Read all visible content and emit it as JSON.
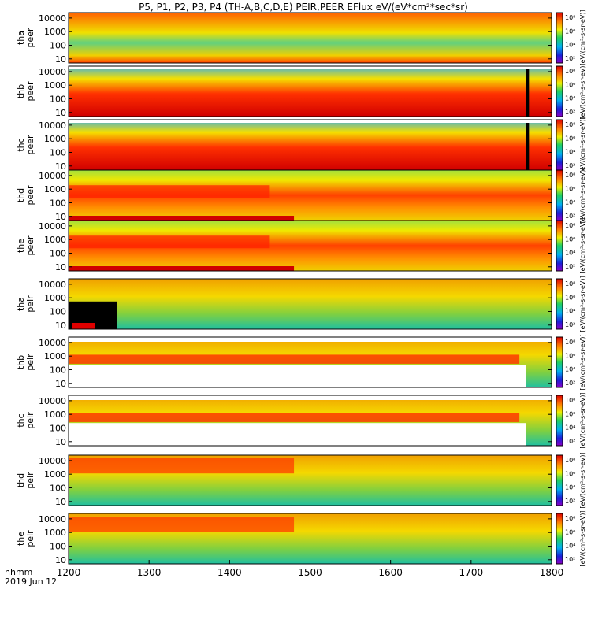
{
  "chart_data": {
    "type": "heatmap",
    "title": "P5, P1, P2, P3, P4 (TH-A,B,C,D,E) PEIR,PEER EFlux eV/(eV*cm²*sec*sr)",
    "xlabel": [
      "hhmm",
      "2019 Jun 12"
    ],
    "x_ticks": [
      "1200",
      "1300",
      "1400",
      "1500",
      "1600",
      "1700",
      "1800"
    ],
    "xlim": [
      1200,
      1800
    ],
    "y_scale": "log",
    "y_ticks": [
      "10",
      "100",
      "1000",
      "10000"
    ],
    "colorbar_label": "[eV/(cm²-s-sr-eV)]",
    "colorbar_ticks": [
      "10²",
      "10⁴",
      "10⁶",
      "10⁸"
    ],
    "panels": [
      {
        "probe": "tha",
        "species": "peer",
        "ylim": [
          5,
          25000
        ]
      },
      {
        "probe": "thb",
        "species": "peer",
        "ylim": [
          5,
          25000
        ]
      },
      {
        "probe": "thc",
        "species": "peer",
        "ylim": [
          5,
          25000
        ]
      },
      {
        "probe": "thd",
        "species": "peer",
        "ylim": [
          5,
          25000
        ]
      },
      {
        "probe": "the",
        "species": "peer",
        "ylim": [
          5,
          25000
        ]
      },
      {
        "probe": "tha",
        "species": "peir",
        "ylim": [
          5,
          25000
        ]
      },
      {
        "probe": "thb",
        "species": "peir",
        "ylim": [
          5,
          25000
        ]
      },
      {
        "probe": "thc",
        "species": "peir",
        "ylim": [
          5,
          25000
        ]
      },
      {
        "probe": "thd",
        "species": "peir",
        "ylim": [
          5,
          25000
        ]
      },
      {
        "probe": "the",
        "species": "peir",
        "ylim": [
          5,
          25000
        ]
      }
    ]
  }
}
